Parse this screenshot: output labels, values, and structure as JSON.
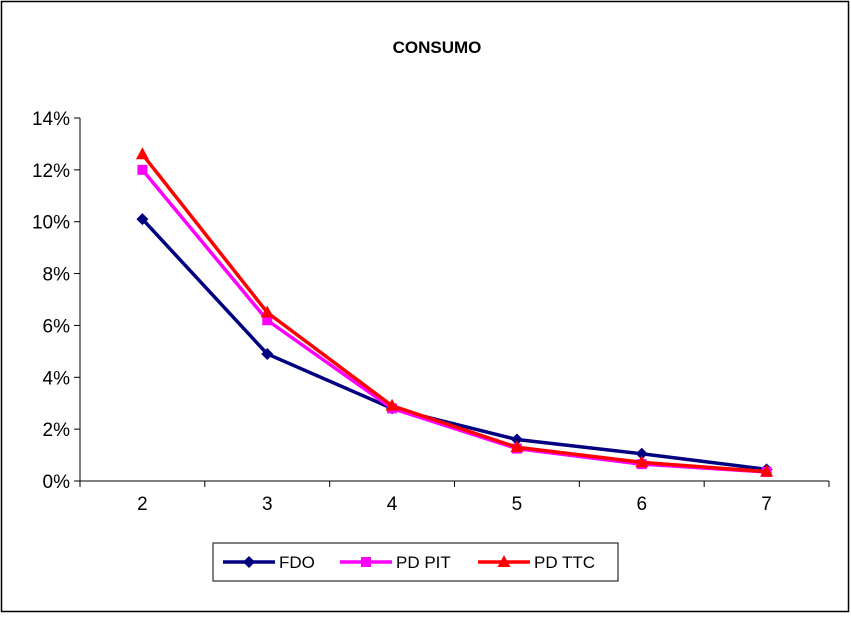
{
  "chart_data": {
    "type": "line",
    "title": "CONSUMO",
    "xlabel": "",
    "ylabel": "",
    "categories": [
      "2",
      "3",
      "4",
      "5",
      "6",
      "7"
    ],
    "y_ticks": [
      "0%",
      "2%",
      "4%",
      "6%",
      "8%",
      "10%",
      "12%",
      "14%"
    ],
    "ylim": [
      0,
      0.14
    ],
    "grid": false,
    "legend_position": "bottom",
    "series": [
      {
        "name": "FDO",
        "color": "#000080",
        "marker": "diamond",
        "values": [
          0.101,
          0.049,
          0.028,
          0.016,
          0.0105,
          0.0045
        ]
      },
      {
        "name": "PD PIT",
        "color": "#FF00FF",
        "marker": "square",
        "values": [
          0.12,
          0.062,
          0.028,
          0.0125,
          0.0065,
          0.0035
        ]
      },
      {
        "name": "PD TTC",
        "color": "#FF0000",
        "marker": "triangle",
        "values": [
          0.126,
          0.065,
          0.029,
          0.013,
          0.0072,
          0.0036
        ]
      }
    ]
  }
}
